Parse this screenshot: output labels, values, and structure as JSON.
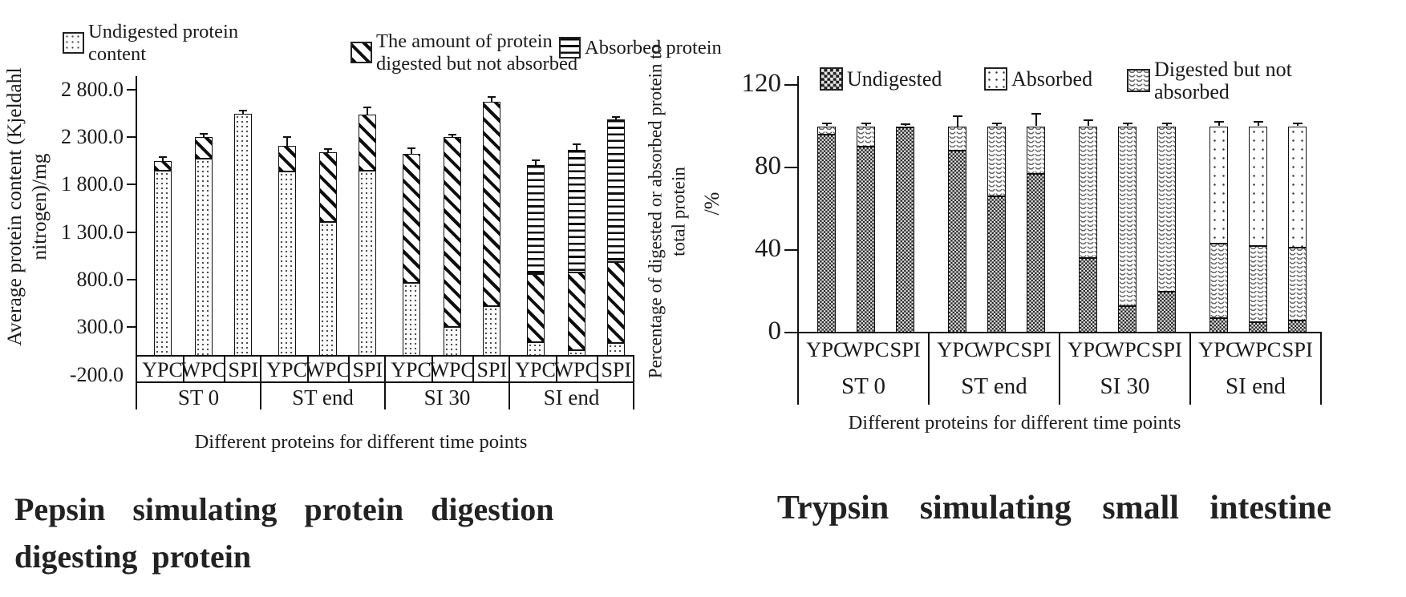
{
  "page": {
    "background": "#ffffff",
    "ink": "#111111"
  },
  "chart_data": [
    {
      "id": "pepsin",
      "type": "bar",
      "subtype": "stacked-vertical",
      "title_lines": [
        "Pepsin simulating protein digestion",
        "digesting protein"
      ],
      "caption": "Different proteins for different time points",
      "ylabel_lines": [
        "Average protein content (Kjeldahl",
        "nitrogen)/mg"
      ],
      "yunit": null,
      "ylim": [
        -200,
        2800
      ],
      "yticks": [
        {
          "label": "2 800.0",
          "value": 2800
        },
        {
          "label": "2 300.0",
          "value": 2300
        },
        {
          "label": "1 800.0",
          "value": 1800
        },
        {
          "label": "1 300.0",
          "value": 1300
        },
        {
          "label": "800.0",
          "value": 800
        },
        {
          "label": "300.0",
          "value": 300
        },
        {
          "label": "-200.0",
          "value": -200
        }
      ],
      "groups": [
        "ST 0",
        "ST end",
        "SI 30",
        "SI end"
      ],
      "bars": [
        "YPC",
        "WPC",
        "SPI"
      ],
      "legend": [
        {
          "lines": [
            "Undigested protein",
            "content"
          ],
          "pattern": "dotlight",
          "icon": "dotted-square-swatch"
        },
        {
          "lines": [
            "The amount of protein",
            "digested but not absorbed"
          ],
          "pattern": "diag",
          "icon": "diagonal-hatch-swatch"
        },
        {
          "lines": [
            "Absorbed protein"
          ],
          "pattern": "hline",
          "icon": "horizontal-lines-swatch"
        }
      ],
      "series": [
        {
          "name": "Undigested protein content",
          "pattern": "dotlight",
          "values": [
            [
              1950,
              2070,
              2545
            ],
            [
              1940,
              1410,
              1950
            ],
            [
              770,
              300,
              520
            ],
            [
              140,
              60,
              135
            ]
          ],
          "errors": [
            [
              0,
              0,
              0
            ],
            [
              40,
              40,
              40
            ],
            [
              35,
              25,
              40
            ],
            [
              30,
              0,
              30
            ]
          ]
        },
        {
          "name": "The amount of protein digested but not absorbed",
          "pattern": "diag",
          "values": [
            [
              100,
              230,
              0
            ],
            [
              270,
              730,
              590
            ],
            [
              1350,
              2000,
              2150
            ],
            [
              720,
              820,
              850
            ]
          ],
          "errors": [
            [
              0,
              0,
              0
            ],
            [
              0,
              0,
              0
            ],
            [
              0,
              0,
              0
            ],
            [
              40,
              40,
              35
            ]
          ]
        },
        {
          "name": "Absorbed protein",
          "pattern": "hline",
          "values": [
            [
              0,
              0,
              0
            ],
            [
              0,
              0,
              0
            ],
            [
              0,
              0,
              0
            ],
            [
              1150,
              1290,
              1505
            ]
          ],
          "errors": [
            [
              0,
              0,
              0
            ],
            [
              0,
              0,
              0
            ],
            [
              0,
              0,
              0
            ],
            [
              0,
              0,
              0
            ]
          ]
        }
      ],
      "bar_errors": [
        [
          40,
          35,
          30
        ],
        [
          95,
          35,
          75
        ],
        [
          65,
          30,
          55
        ],
        [
          45,
          55,
          25
        ]
      ]
    },
    {
      "id": "trypsin",
      "type": "bar",
      "subtype": "stacked-vertical",
      "title_lines": [
        "Trypsin simulating small intestine"
      ],
      "caption": "Different proteins for different time points",
      "ylabel_lines": [
        "Percentage of digested or absorbed protein to",
        "total protein"
      ],
      "yunit": "/%",
      "ylim": [
        0,
        120
      ],
      "yticks": [
        {
          "label": "120",
          "value": 120
        },
        {
          "label": "80",
          "value": 80
        },
        {
          "label": "40",
          "value": 40
        },
        {
          "label": "0",
          "value": 0
        }
      ],
      "groups": [
        "ST 0",
        "ST end",
        "SI 30",
        "SI end"
      ],
      "bars": [
        "YPC",
        "WPC",
        "SPI"
      ],
      "legend": [
        {
          "lines": [
            "Undigested"
          ],
          "pattern": "checker",
          "icon": "checkerboard-swatch"
        },
        {
          "lines": [
            "Absorbed"
          ],
          "pattern": "dotsparse",
          "icon": "sparse-dots-swatch"
        },
        {
          "lines": [
            "Digested but not",
            "absorbed"
          ],
          "pattern": "wave",
          "icon": "wave-swatch"
        }
      ],
      "series": [
        {
          "name": "Undigested",
          "pattern": "checker",
          "values": [
            [
              96,
              90,
              99.5
            ],
            [
              88,
              66,
              77
            ],
            [
              36,
              13,
              20
            ],
            [
              7,
              5,
              6
            ]
          ],
          "errors": [
            [
              0,
              0,
              0
            ],
            [
              2,
              2,
              2
            ],
            [
              2,
              1.5,
              1.5
            ],
            [
              0,
              0,
              0
            ]
          ]
        },
        {
          "name": "Digested but not absorbed",
          "pattern": "wave",
          "values": [
            [
              4,
              10,
              0.5
            ],
            [
              12,
              34,
              23
            ],
            [
              64,
              87,
              80
            ],
            [
              36,
              37,
              35
            ]
          ],
          "errors": [
            [
              0,
              0,
              0
            ],
            [
              0,
              0,
              0
            ],
            [
              0,
              0,
              0
            ],
            [
              2,
              2,
              2
            ]
          ]
        },
        {
          "name": "Absorbed",
          "pattern": "dotsparse",
          "values": [
            [
              0,
              0,
              0
            ],
            [
              0,
              0,
              0
            ],
            [
              0,
              0,
              0
            ],
            [
              57,
              58,
              59
            ]
          ],
          "errors": [
            [
              0,
              0,
              0
            ],
            [
              0,
              0,
              0
            ],
            [
              0,
              0,
              0
            ],
            [
              0,
              0,
              0
            ]
          ]
        }
      ],
      "bar_errors": [
        [
          1.5,
          1.5,
          1
        ],
        [
          5,
          1.5,
          6
        ],
        [
          3,
          1.5,
          1.5
        ],
        [
          2,
          2,
          1.5
        ]
      ]
    }
  ]
}
